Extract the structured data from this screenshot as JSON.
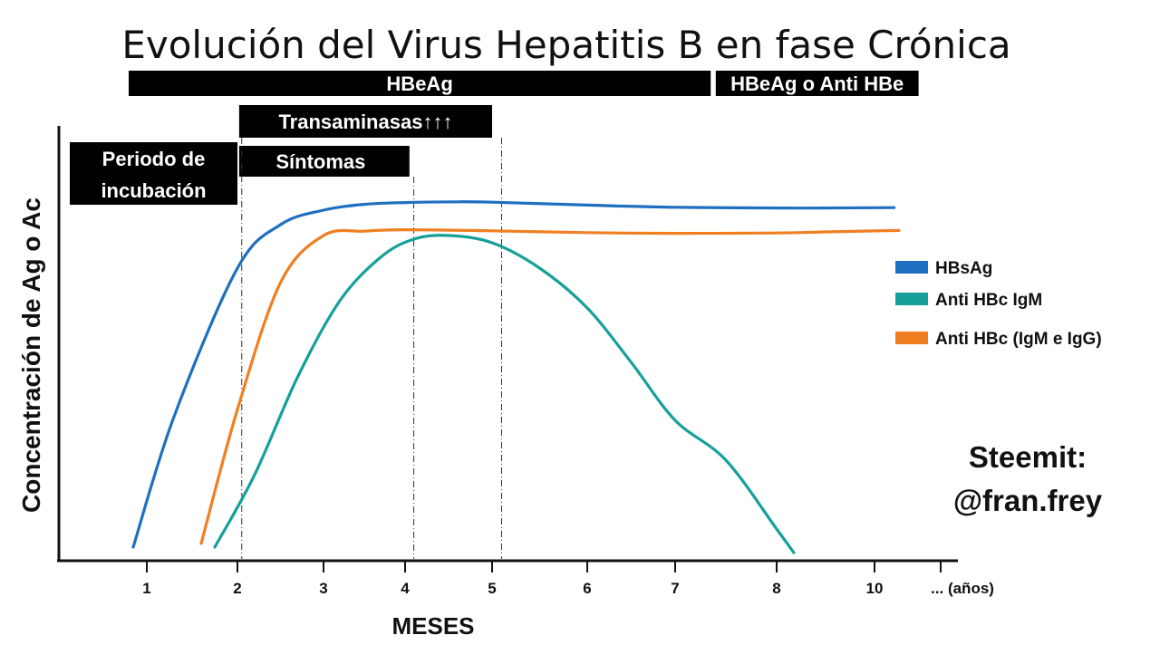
{
  "chart_data": {
    "type": "line",
    "title": "Evolución del Virus Hepatitis B en fase Crónica",
    "xlabel": "MESES",
    "ylabel": "Concentración de Ag o Ac",
    "x_ticks": [
      "1",
      "2",
      "3",
      "4",
      "5",
      "6",
      "7",
      "8",
      "10"
    ],
    "x_tail_label": "... (años)",
    "y_range": [
      0,
      100
    ],
    "grid": false,
    "legend_position": "right",
    "bands": [
      {
        "label": "HBeAg",
        "from": 0.8,
        "to": 7.35
      },
      {
        "label": "HBeAg o Anti HBe",
        "from": 7.4,
        "to": 10.9
      },
      {
        "label": "Transaminasas↑↑↑",
        "from": 2.02,
        "to": 5.0
      },
      {
        "label": "Síntomas",
        "from": 2.02,
        "to": 4.05
      },
      {
        "label": "Periodo de incubación",
        "label_lines": [
          "Periodo de",
          "incubación"
        ],
        "from": 0.15,
        "to": 2.0
      }
    ],
    "markers": [
      2.05,
      4.1,
      5.1
    ],
    "series": [
      {
        "name": "HBsAg",
        "color": "#1f6fc0",
        "points": [
          [
            0.85,
            2
          ],
          [
            1.3,
            38
          ],
          [
            2.0,
            79
          ],
          [
            2.5,
            91
          ],
          [
            3.0,
            95
          ],
          [
            3.5,
            96.6
          ],
          [
            4.0,
            97.1
          ],
          [
            4.6,
            97.3
          ],
          [
            5.0,
            97.2
          ],
          [
            6.0,
            96.4
          ],
          [
            7.0,
            95.8
          ],
          [
            8.0,
            95.6
          ],
          [
            9.0,
            95.6
          ],
          [
            10.4,
            95.7
          ]
        ]
      },
      {
        "name": "Anti HBc IgM",
        "color": "#16a09a",
        "points": [
          [
            1.75,
            2
          ],
          [
            2.2,
            22
          ],
          [
            2.7,
            49
          ],
          [
            3.2,
            70
          ],
          [
            3.7,
            82
          ],
          [
            4.1,
            87
          ],
          [
            4.5,
            88
          ],
          [
            5.0,
            86
          ],
          [
            5.5,
            79
          ],
          [
            6.0,
            68
          ],
          [
            6.5,
            53
          ],
          [
            7.0,
            37
          ],
          [
            7.5,
            26
          ],
          [
            8.0,
            7
          ],
          [
            8.35,
            0.5
          ]
        ]
      },
      {
        "name": "Anti HBc (IgM e IgG)",
        "color": "#f07f22",
        "points": [
          [
            1.6,
            3
          ],
          [
            2.0,
            40
          ],
          [
            2.5,
            75
          ],
          [
            3.0,
            88
          ],
          [
            3.5,
            89.2
          ],
          [
            4.0,
            89.6
          ],
          [
            5.0,
            89.3
          ],
          [
            6.0,
            88.8
          ],
          [
            7.0,
            88.6
          ],
          [
            8.0,
            88.7
          ],
          [
            9.0,
            89.0
          ],
          [
            10.5,
            89.4
          ]
        ]
      }
    ],
    "annotation": [
      "Steemit:",
      "@fran.frey"
    ]
  }
}
